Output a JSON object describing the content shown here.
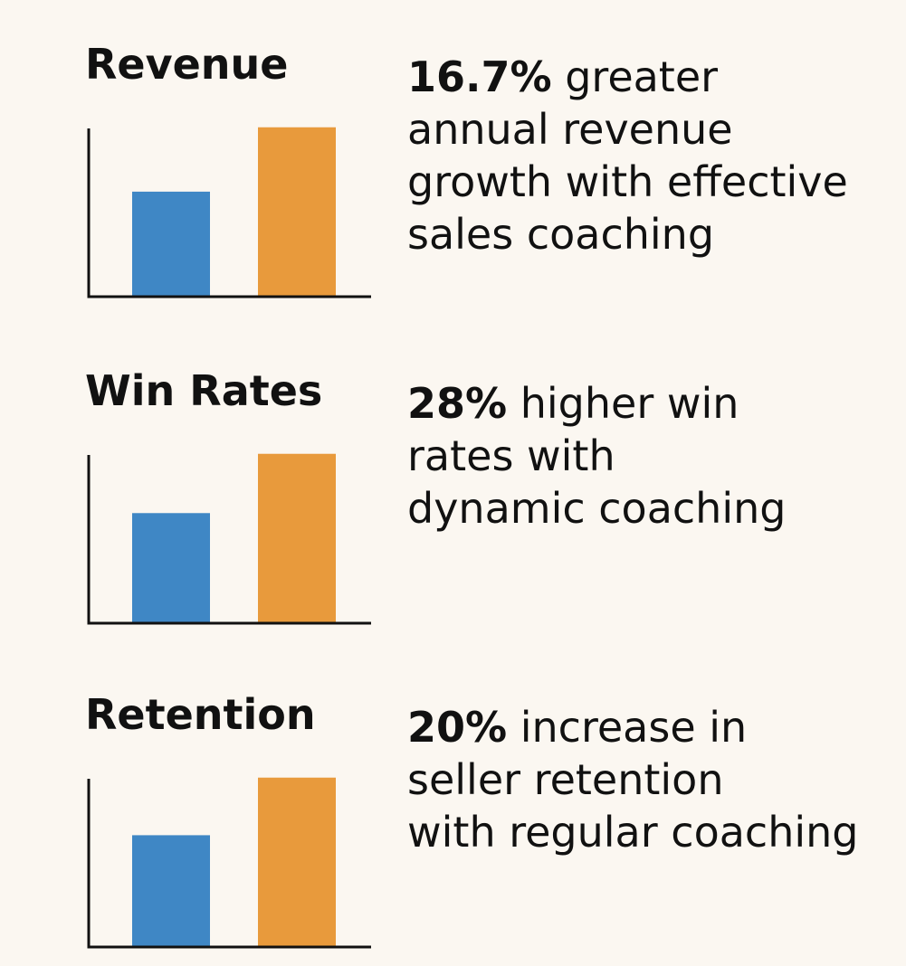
{
  "colors": {
    "background": "#fbf7f1",
    "bar_blue": "#3f87c5",
    "bar_orange": "#e89a3c",
    "axis": "#111111"
  },
  "sections": [
    {
      "title": "Revenue",
      "stat_value": "16.7%",
      "stat_line_1": " greater",
      "stat_line_2": "annual revenue",
      "stat_line_3": "growth with effective",
      "stat_line_4": "sales coaching"
    },
    {
      "title": "Win Rates",
      "stat_value": "28%",
      "stat_line_1": " higher win",
      "stat_line_2": "rates with",
      "stat_line_3": "dynamic coaching",
      "stat_line_4": ""
    },
    {
      "title": "Retention",
      "stat_value": "20%",
      "stat_line_1": " increase in",
      "stat_line_2": "seller retention",
      "stat_line_3": "with regular coaching",
      "stat_line_4": ""
    }
  ],
  "chart_data": [
    {
      "type": "bar",
      "title": "Revenue",
      "categories": [
        "",
        ""
      ],
      "values": [
        62,
        100
      ],
      "bar_colors": [
        "#3f87c5",
        "#e89a3c"
      ],
      "ylim": [
        0,
        110
      ],
      "grid": false,
      "axis_ticks": false
    },
    {
      "type": "bar",
      "title": "Win Rates",
      "categories": [
        "",
        ""
      ],
      "values": [
        65,
        100
      ],
      "bar_colors": [
        "#3f87c5",
        "#e89a3c"
      ],
      "ylim": [
        0,
        110
      ],
      "grid": false,
      "axis_ticks": false
    },
    {
      "type": "bar",
      "title": "Retention",
      "categories": [
        "",
        ""
      ],
      "values": [
        66,
        100
      ],
      "bar_colors": [
        "#3f87c5",
        "#e89a3c"
      ],
      "ylim": [
        0,
        110
      ],
      "grid": false,
      "axis_ticks": false
    }
  ]
}
